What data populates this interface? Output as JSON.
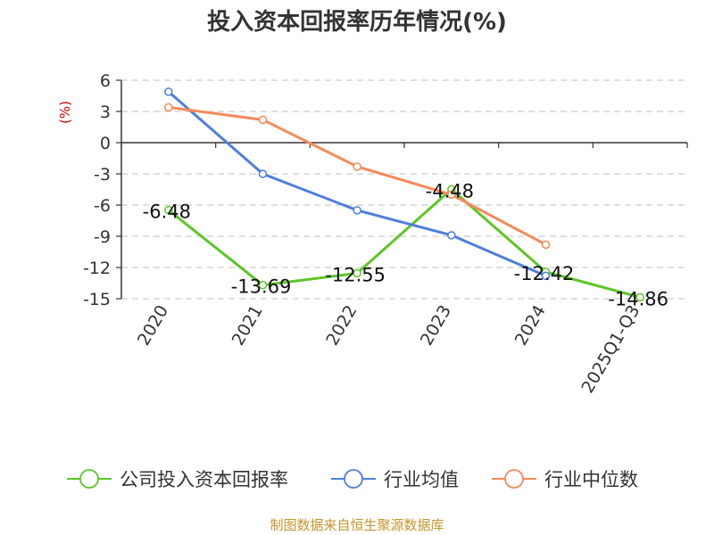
{
  "chart_data": {
    "type": "line",
    "title": "投入资本回报率历年情况(%)",
    "ylabel": "(%)",
    "categories": [
      "2020",
      "2021",
      "2022",
      "2023",
      "2024",
      "2025Q1-Q3"
    ],
    "ylim": [
      -15,
      6
    ],
    "yticks": [
      6,
      3,
      0,
      -3,
      -6,
      -9,
      -12,
      -15
    ],
    "grid": true,
    "legend_position": "bottom",
    "series": [
      {
        "name": "公司投入资本回报率",
        "color": "#5cc726",
        "values": [
          -6.48,
          -13.69,
          -12.55,
          -4.48,
          -12.42,
          -14.86
        ],
        "labels": [
          "-6.48",
          "-13.69",
          "-12.55",
          "-4.48",
          "-12.42",
          "-14.86"
        ]
      },
      {
        "name": "行业均值",
        "color": "#4e7fdc",
        "values": [
          4.9,
          -3.0,
          -6.5,
          -8.9,
          -12.8,
          null
        ]
      },
      {
        "name": "行业中位数",
        "color": "#f6895a",
        "values": [
          3.4,
          2.2,
          -2.3,
          -5.0,
          -9.8,
          null
        ]
      }
    ]
  },
  "footer": {
    "source": "制图数据来自恒生聚源数据库"
  }
}
